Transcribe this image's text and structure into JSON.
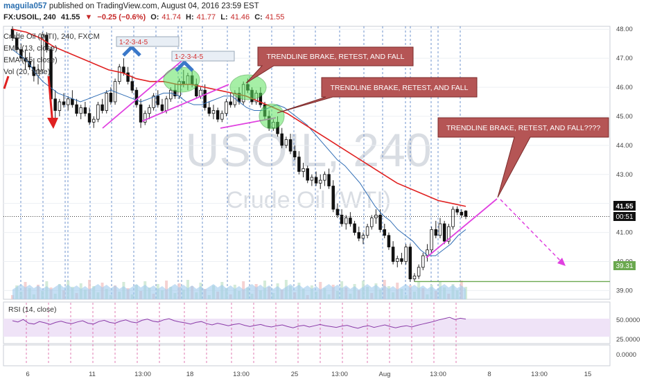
{
  "header": {
    "author": "maguila057",
    "published_text": "published on TradingView.com, August 04, 2016 23:59 EST",
    "symbol": "FX:USOIL, 240",
    "last": "41.55",
    "change": "−0.25 (−0.6%)",
    "open_label": "O:",
    "open": "41.74",
    "high_label": "H:",
    "high": "41.77",
    "low_label": "L:",
    "low": "41.46",
    "close_label": "C:",
    "close": "41.55"
  },
  "legend": {
    "series": "Crude Oil (WTI), 240, FXCM",
    "ema13": "EMA (13, close)",
    "ema65": "EMA (65, close)",
    "vol": "Vol (20, false)"
  },
  "watermark": {
    "symbol": "USOIL, 240",
    "name": "Crude Oil (WTI)"
  },
  "rsi": {
    "label": "RSI (14, close)",
    "ticks": [
      "50.0000",
      "25.0000"
    ],
    "lower_value": "0.0000"
  },
  "price_tags": {
    "last": "41.55",
    "countdown": "00:51",
    "support": "39.31"
  },
  "annotations": {
    "note1": "TRENDLINE BRAKE, RETEST, AND FALL",
    "note2": "TRENDLINE BRAKE, RETEST, AND FALL",
    "note3": "TRENDLINE BRAKE, RETEST, AND FALL????",
    "wave1": "1-2-3-4-5",
    "wave2": "1-2-3-4-5"
  },
  "chart_data": {
    "type": "candlestick",
    "y_axis_ticks": [
      "48.00",
      "47.00",
      "46.00",
      "45.00",
      "44.00",
      "43.00",
      "42.00",
      "41.00",
      "40.00",
      "39.00"
    ],
    "ylim": [
      38.7,
      48.1
    ],
    "x_ticks": [
      "6",
      "11",
      "13:00",
      "18",
      "13:00",
      "25",
      "13:00",
      "Aug",
      "13:00",
      "8",
      "13:00",
      "15"
    ],
    "candles": [
      [
        48.0,
        48.1,
        47.6,
        47.7
      ],
      [
        47.7,
        47.9,
        47.2,
        47.3
      ],
      [
        47.3,
        47.5,
        46.9,
        47.0
      ],
      [
        47.0,
        47.3,
        46.6,
        46.9
      ],
      [
        46.9,
        47.2,
        46.6,
        46.7
      ],
      [
        46.7,
        47.0,
        46.2,
        46.4
      ],
      [
        46.4,
        46.8,
        46.1,
        46.6
      ],
      [
        46.6,
        47.9,
        46.5,
        47.8
      ],
      [
        47.8,
        47.9,
        47.2,
        47.3
      ],
      [
        47.3,
        47.4,
        45.5,
        45.6
      ],
      [
        45.6,
        45.9,
        44.9,
        45.2
      ],
      [
        45.2,
        45.6,
        45.0,
        45.5
      ],
      [
        45.5,
        45.8,
        45.3,
        45.4
      ],
      [
        45.4,
        45.7,
        45.2,
        45.6
      ],
      [
        45.6,
        45.9,
        45.3,
        45.4
      ],
      [
        45.4,
        45.6,
        45.0,
        45.1
      ],
      [
        45.1,
        45.4,
        44.9,
        45.3
      ],
      [
        45.3,
        45.5,
        45.0,
        45.1
      ],
      [
        45.1,
        45.3,
        44.7,
        44.8
      ],
      [
        44.8,
        45.0,
        44.6,
        44.9
      ],
      [
        44.9,
        45.5,
        44.8,
        45.4
      ],
      [
        45.4,
        45.6,
        45.1,
        45.2
      ],
      [
        45.2,
        45.9,
        45.1,
        45.8
      ],
      [
        45.8,
        46.0,
        45.4,
        45.5
      ],
      [
        45.5,
        46.3,
        45.4,
        46.2
      ],
      [
        46.2,
        46.8,
        46.1,
        46.7
      ],
      [
        46.7,
        47.0,
        46.4,
        46.5
      ],
      [
        46.5,
        46.7,
        46.1,
        46.2
      ],
      [
        46.2,
        46.4,
        45.8,
        45.9
      ],
      [
        45.9,
        46.0,
        45.3,
        45.4
      ],
      [
        45.4,
        45.6,
        44.6,
        44.8
      ],
      [
        44.8,
        45.2,
        44.7,
        45.1
      ],
      [
        45.1,
        45.4,
        44.9,
        45.3
      ],
      [
        45.3,
        45.8,
        45.2,
        45.7
      ],
      [
        45.7,
        45.9,
        45.3,
        45.4
      ],
      [
        45.4,
        45.6,
        45.1,
        45.2
      ],
      [
        45.2,
        45.7,
        45.1,
        45.6
      ],
      [
        45.6,
        46.0,
        45.5,
        45.9
      ],
      [
        45.9,
        46.1,
        45.6,
        45.7
      ],
      [
        45.7,
        46.3,
        45.6,
        46.2
      ],
      [
        46.2,
        46.6,
        46.0,
        46.1
      ],
      [
        46.1,
        46.5,
        45.9,
        46.4
      ],
      [
        46.4,
        46.6,
        46.0,
        46.1
      ],
      [
        46.1,
        46.3,
        45.6,
        45.7
      ],
      [
        45.7,
        46.0,
        45.6,
        45.9
      ],
      [
        45.9,
        46.1,
        45.2,
        45.3
      ],
      [
        45.3,
        45.5,
        45.0,
        45.1
      ],
      [
        45.1,
        45.4,
        44.9,
        45.2
      ],
      [
        45.2,
        45.3,
        44.8,
        44.9
      ],
      [
        44.9,
        45.2,
        44.8,
        45.1
      ],
      [
        45.1,
        45.6,
        45.0,
        45.5
      ],
      [
        45.5,
        45.8,
        45.3,
        45.4
      ],
      [
        45.4,
        45.9,
        45.3,
        45.8
      ],
      [
        45.8,
        46.0,
        45.4,
        45.5
      ],
      [
        45.5,
        46.2,
        45.4,
        46.1
      ],
      [
        46.1,
        46.3,
        45.8,
        45.9
      ],
      [
        45.9,
        46.0,
        45.4,
        45.5
      ],
      [
        45.5,
        45.9,
        45.4,
        45.8
      ],
      [
        45.8,
        46.0,
        45.3,
        45.4
      ],
      [
        45.4,
        45.5,
        44.9,
        45.0
      ],
      [
        45.0,
        45.2,
        44.5,
        44.6
      ],
      [
        44.6,
        44.9,
        44.5,
        44.8
      ],
      [
        44.8,
        45.0,
        44.3,
        44.4
      ],
      [
        44.4,
        44.6,
        43.9,
        44.0
      ],
      [
        44.0,
        44.3,
        43.9,
        44.2
      ],
      [
        44.2,
        44.4,
        43.7,
        43.8
      ],
      [
        43.8,
        44.0,
        43.5,
        43.6
      ],
      [
        43.6,
        43.8,
        43.0,
        43.1
      ],
      [
        43.1,
        43.4,
        42.9,
        43.2
      ],
      [
        43.2,
        43.3,
        42.7,
        42.8
      ],
      [
        42.8,
        43.0,
        42.6,
        42.9
      ],
      [
        42.9,
        43.1,
        42.6,
        42.7
      ],
      [
        42.7,
        43.0,
        42.5,
        42.8
      ],
      [
        42.8,
        43.1,
        42.6,
        43.0
      ],
      [
        43.0,
        43.2,
        42.5,
        42.6
      ],
      [
        42.6,
        42.8,
        41.7,
        41.8
      ],
      [
        41.8,
        42.0,
        41.5,
        41.6
      ],
      [
        41.6,
        41.8,
        41.2,
        41.3
      ],
      [
        41.3,
        41.6,
        41.1,
        41.5
      ],
      [
        41.5,
        41.7,
        41.2,
        41.3
      ],
      [
        41.3,
        41.4,
        40.9,
        41.0
      ],
      [
        41.0,
        41.2,
        40.7,
        40.8
      ],
      [
        40.8,
        41.0,
        40.6,
        40.9
      ],
      [
        40.9,
        41.3,
        40.8,
        41.2
      ],
      [
        41.2,
        41.6,
        41.1,
        41.5
      ],
      [
        41.5,
        41.8,
        41.3,
        41.6
      ],
      [
        41.6,
        41.8,
        41.0,
        41.1
      ],
      [
        41.1,
        41.3,
        40.8,
        40.9
      ],
      [
        40.9,
        41.0,
        40.4,
        40.5
      ],
      [
        40.5,
        40.7,
        39.9,
        40.0
      ],
      [
        40.0,
        40.2,
        39.8,
        40.1
      ],
      [
        40.1,
        40.3,
        39.9,
        40.0
      ],
      [
        40.0,
        40.6,
        39.9,
        40.5
      ],
      [
        40.5,
        40.6,
        39.3,
        39.4
      ],
      [
        39.4,
        39.6,
        39.3,
        39.5
      ],
      [
        39.5,
        39.9,
        39.4,
        39.8
      ],
      [
        39.8,
        40.3,
        39.7,
        40.2
      ],
      [
        40.2,
        40.6,
        40.0,
        40.4
      ],
      [
        40.4,
        41.2,
        40.3,
        41.1
      ],
      [
        41.1,
        41.4,
        40.8,
        40.9
      ],
      [
        40.9,
        41.5,
        40.8,
        41.3
      ],
      [
        41.3,
        41.4,
        40.6,
        40.7
      ],
      [
        40.7,
        41.3,
        40.6,
        41.2
      ],
      [
        41.2,
        41.9,
        41.1,
        41.8
      ],
      [
        41.8,
        41.9,
        41.6,
        41.7
      ],
      [
        41.7,
        41.8,
        41.5,
        41.6
      ],
      [
        41.74,
        41.77,
        41.46,
        41.55
      ]
    ],
    "ema13": [
      47.3,
      47.1,
      46.9,
      46.5,
      46.2,
      46.0,
      45.8,
      45.7,
      45.6,
      45.5,
      45.6,
      45.7,
      45.8,
      45.9,
      45.8,
      45.7,
      45.6,
      45.5,
      45.6,
      45.7,
      45.8,
      45.8,
      45.7,
      45.5,
      45.4,
      45.4,
      45.5,
      45.6,
      45.7,
      45.7,
      45.5,
      45.3,
      45.2,
      45.2,
      45.3,
      45.4,
      45.3,
      45.1,
      44.9,
      44.7,
      44.4,
      44.1,
      43.8,
      43.5,
      43.3,
      43.0,
      42.7,
      42.3,
      41.9,
      41.6,
      41.4,
      41.1,
      40.9,
      40.7,
      40.4,
      40.2,
      40.2,
      40.4,
      40.6,
      40.9,
      41.1
    ],
    "ema65": [
      48.0,
      47.9,
      47.7,
      47.4,
      47.2,
      47.0,
      46.8,
      46.6,
      46.5,
      46.3,
      46.2,
      46.2,
      46.1,
      46.1,
      46.0,
      45.9,
      45.8,
      45.7,
      45.5,
      45.3,
      45.1,
      44.8,
      44.5,
      44.2,
      43.9,
      43.6,
      43.3,
      43.0,
      42.7,
      42.5,
      42.3,
      42.1,
      42.0,
      41.9
    ],
    "rsi_values": [
      55,
      52,
      58,
      49,
      47,
      53,
      50,
      46,
      51,
      54,
      50,
      48,
      52,
      55,
      49,
      47,
      53,
      56,
      51,
      49,
      54,
      57,
      52,
      50,
      56,
      59,
      54,
      52,
      57,
      60,
      55,
      52,
      50,
      47,
      51,
      53,
      48,
      45,
      49,
      46,
      43,
      46,
      48,
      44,
      41,
      44,
      46,
      42,
      40,
      43,
      45,
      41,
      38,
      42,
      44,
      40,
      43,
      46,
      43,
      41,
      39,
      42,
      44,
      40,
      37,
      41,
      43,
      39,
      42,
      45,
      41,
      38,
      41,
      43,
      40,
      44,
      47,
      50,
      53,
      57,
      60,
      63,
      58,
      61,
      59
    ],
    "support_level": 39.31,
    "last_price": 41.55
  }
}
